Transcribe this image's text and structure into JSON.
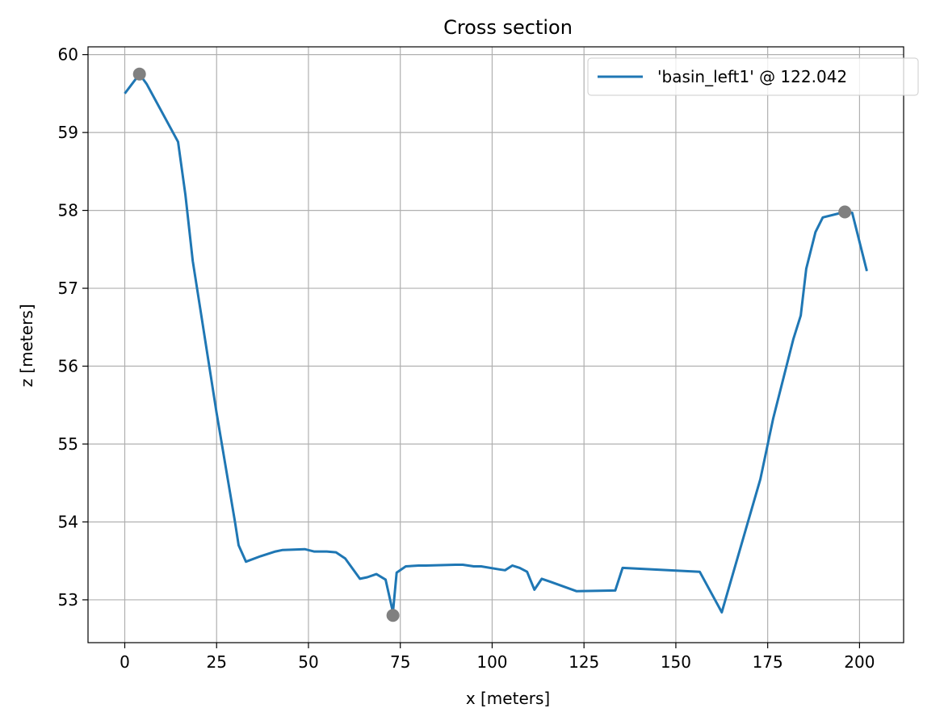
{
  "chart_data": {
    "type": "line",
    "title": "Cross section",
    "xlabel": "x [meters]",
    "ylabel": "z [meters]",
    "xlim": [
      -10,
      212
    ],
    "ylim": [
      52.45,
      60.1
    ],
    "xticks": [
      0,
      25,
      50,
      75,
      100,
      125,
      150,
      175,
      200
    ],
    "yticks": [
      53,
      54,
      55,
      56,
      57,
      58,
      59,
      60
    ],
    "grid": true,
    "legend_position": "top-right",
    "series": [
      {
        "name": "'basin_left1' @ 122.042",
        "color": "#1f77b4",
        "x": [
          0,
          4,
          6,
          14.5,
          16.5,
          18.5,
          20.5,
          25,
          30,
          31,
          33,
          37,
          41,
          43,
          49,
          51.5,
          55,
          57.5,
          60,
          64,
          66,
          68.5,
          71,
          73,
          74,
          76.5,
          80,
          82,
          90,
          92,
          95,
          97,
          102,
          103.5,
          105.5,
          107.5,
          109.5,
          111.5,
          113.5,
          116,
          123,
          133.5,
          135.5,
          156.5,
          162.5,
          173,
          176.5,
          182,
          184,
          185.5,
          188,
          190,
          196,
          198,
          202
        ],
        "y": [
          59.5,
          59.75,
          59.62,
          58.88,
          58.2,
          57.35,
          56.75,
          55.4,
          54.0,
          53.7,
          53.49,
          53.56,
          53.62,
          53.64,
          53.65,
          53.62,
          53.62,
          53.61,
          53.53,
          53.27,
          53.29,
          53.33,
          53.26,
          52.84,
          53.35,
          53.43,
          53.44,
          53.44,
          53.45,
          53.45,
          53.43,
          53.43,
          53.39,
          53.38,
          53.44,
          53.41,
          53.36,
          53.13,
          53.27,
          53.23,
          53.11,
          53.12,
          53.41,
          53.36,
          52.84,
          54.55,
          55.33,
          56.35,
          56.65,
          57.25,
          57.72,
          57.91,
          57.98,
          57.97,
          57.22
        ]
      }
    ],
    "markers": {
      "color": "#808080",
      "x": [
        4,
        73,
        196
      ],
      "y": [
        59.75,
        52.8,
        57.98
      ]
    }
  }
}
